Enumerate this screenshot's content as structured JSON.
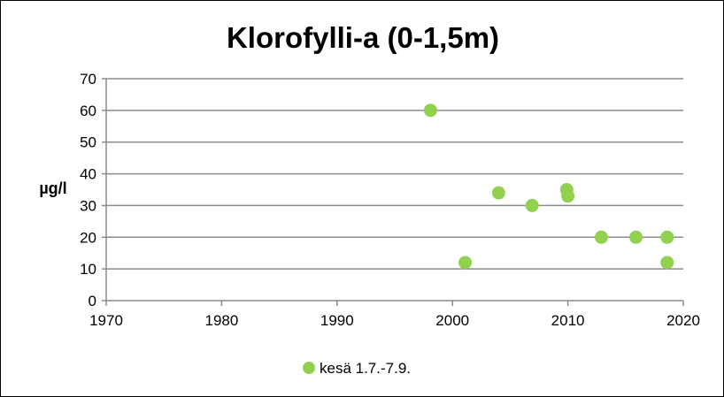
{
  "chart_data": {
    "type": "scatter",
    "title": "Klorofylli-a (0-1,5m)",
    "xlabel": "",
    "ylabel": "µg/l",
    "xlim": [
      1970,
      2020
    ],
    "ylim": [
      0,
      70
    ],
    "xticks": [
      1970,
      1980,
      1990,
      2000,
      2010,
      2020
    ],
    "yticks": [
      0,
      10,
      20,
      30,
      40,
      50,
      60,
      70
    ],
    "grid": "horizontal",
    "legend_position": "bottom",
    "series": [
      {
        "name": "kesä 1.7.-7.9.",
        "color": "#92D050",
        "points": [
          {
            "x": 1998.1,
            "y": 60
          },
          {
            "x": 2001.1,
            "y": 12
          },
          {
            "x": 2004.0,
            "y": 34
          },
          {
            "x": 2006.9,
            "y": 30
          },
          {
            "x": 2009.9,
            "y": 35
          },
          {
            "x": 2010.0,
            "y": 33
          },
          {
            "x": 2012.9,
            "y": 20
          },
          {
            "x": 2015.9,
            "y": 20
          },
          {
            "x": 2018.6,
            "y": 20
          },
          {
            "x": 2018.6,
            "y": 12
          }
        ]
      }
    ]
  }
}
